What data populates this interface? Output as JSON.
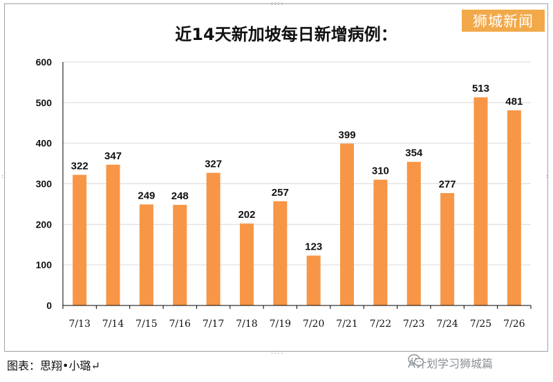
{
  "watermark": "狮城新闻",
  "credit": "图表：思翔•小璐↵",
  "source_tag": "A计划学习狮城篇",
  "colors": {
    "bar": "#f79646",
    "grid": "#d9d9d9",
    "axis": "#000000"
  },
  "chart_data": {
    "type": "bar",
    "title": "近14天新加坡每日新增病例：",
    "xlabel": "",
    "ylabel": "",
    "ylim": [
      0,
      600
    ],
    "yticks": [
      0,
      100,
      200,
      300,
      400,
      500,
      600
    ],
    "grid": true,
    "legend": "none",
    "categories": [
      "7/13",
      "7/14",
      "7/15",
      "7/16",
      "7/17",
      "7/18",
      "7/19",
      "7/20",
      "7/21",
      "7/22",
      "7/23",
      "7/24",
      "7/25",
      "7/26"
    ],
    "values": [
      322,
      347,
      249,
      248,
      327,
      202,
      257,
      123,
      399,
      310,
      354,
      277,
      513,
      481
    ],
    "data_labels": true
  }
}
